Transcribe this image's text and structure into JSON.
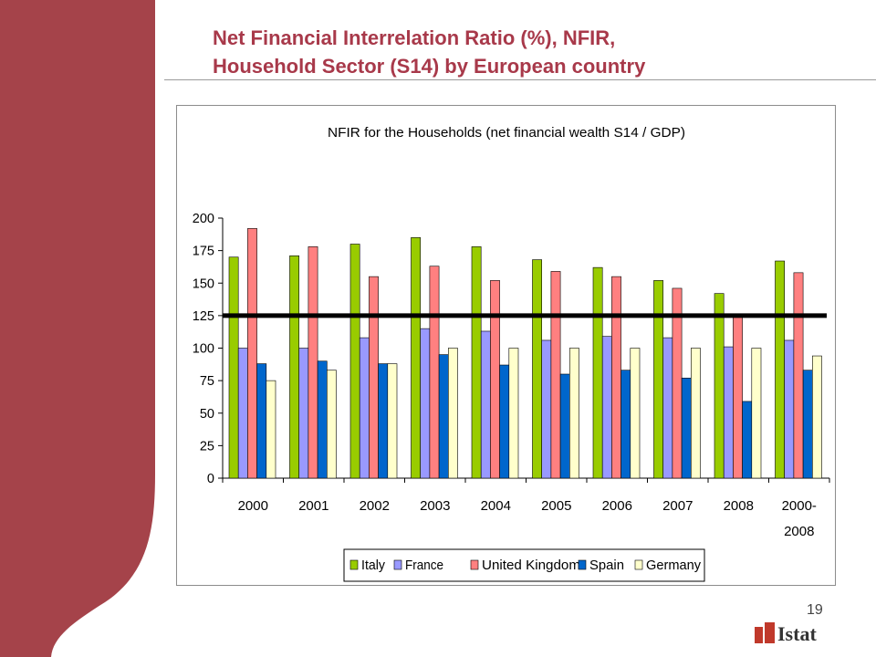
{
  "slide": {
    "title_line1": "Net Financial Interrelation Ratio (%), NFIR,",
    "title_line2": "Household Sector (S14) by European country",
    "page_number": "19",
    "logo_text": "Istat",
    "band_color": "#a5434a",
    "title_color": "#a8394a"
  },
  "chart_data": {
    "type": "bar",
    "title": "NFIR for the Households (net financial wealth S14 / GDP)",
    "categories": [
      "2000",
      "2001",
      "2002",
      "2003",
      "2004",
      "2005",
      "2006",
      "2007",
      "2008",
      "2000-\n2008"
    ],
    "series": [
      {
        "name": "Italy",
        "color": "#99cc00",
        "values": [
          170,
          171,
          180,
          185,
          178,
          168,
          162,
          152,
          142,
          167
        ]
      },
      {
        "name": "France",
        "color": "#9999ff",
        "values": [
          100,
          100,
          108,
          115,
          113,
          106,
          109,
          108,
          101,
          106
        ]
      },
      {
        "name": "United Kingdom",
        "color": "#ff8080",
        "values": [
          192,
          178,
          155,
          163,
          152,
          159,
          155,
          146,
          125,
          158
        ]
      },
      {
        "name": "Spain",
        "color": "#0066cc",
        "values": [
          88,
          90,
          88,
          95,
          87,
          80,
          83,
          77,
          59,
          83
        ]
      },
      {
        "name": "Germany",
        "color": "#ffffcc",
        "values": [
          75,
          83,
          88,
          100,
          100,
          100,
          100,
          100,
          100,
          94
        ]
      }
    ],
    "ylim": [
      0,
      200
    ],
    "yticks": [
      "0",
      "25",
      "50",
      "75",
      "100",
      "125",
      "150",
      "175",
      "200"
    ],
    "reference_line": 125,
    "grid": false,
    "legend_position": "bottom"
  }
}
